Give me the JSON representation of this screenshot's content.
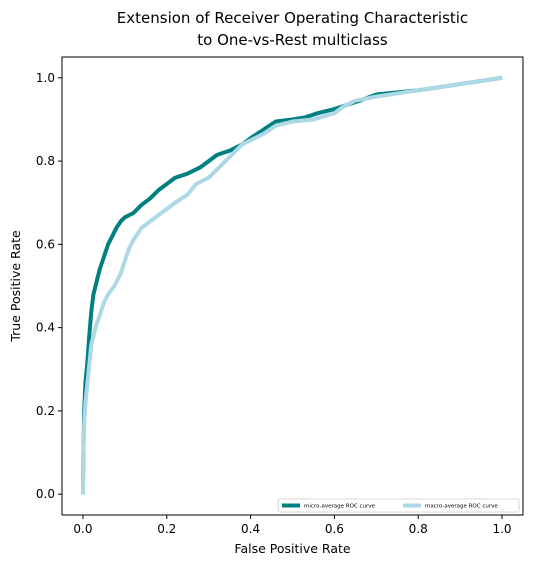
{
  "chart_data": {
    "type": "line",
    "title": [
      "Extension of Receiver Operating Characteristic",
      "to One-vs-Rest multiclass"
    ],
    "xlabel": "False Positive Rate",
    "ylabel": "True Positive Rate",
    "xlim": [
      -0.05,
      1.05
    ],
    "ylim": [
      -0.05,
      1.05
    ],
    "x_ticks": [
      "0.0",
      "0.2",
      "0.4",
      "0.6",
      "0.8",
      "1.0"
    ],
    "y_ticks": [
      "0.0",
      "0.2",
      "0.4",
      "0.6",
      "0.8",
      "1.0"
    ],
    "grid": false,
    "legend_position": "lower right",
    "series": [
      {
        "name": "micro-average ROC curve",
        "color": "#008080",
        "points": [
          [
            0.0,
            0.0
          ],
          [
            0.001,
            0.1
          ],
          [
            0.003,
            0.2
          ],
          [
            0.006,
            0.27
          ],
          [
            0.01,
            0.31
          ],
          [
            0.015,
            0.38
          ],
          [
            0.02,
            0.44
          ],
          [
            0.025,
            0.48
          ],
          [
            0.03,
            0.5
          ],
          [
            0.035,
            0.52
          ],
          [
            0.04,
            0.54
          ],
          [
            0.05,
            0.57
          ],
          [
            0.06,
            0.6
          ],
          [
            0.07,
            0.62
          ],
          [
            0.08,
            0.64
          ],
          [
            0.09,
            0.655
          ],
          [
            0.1,
            0.665
          ],
          [
            0.12,
            0.675
          ],
          [
            0.14,
            0.695
          ],
          [
            0.16,
            0.71
          ],
          [
            0.18,
            0.73
          ],
          [
            0.2,
            0.745
          ],
          [
            0.22,
            0.76
          ],
          [
            0.25,
            0.77
          ],
          [
            0.28,
            0.785
          ],
          [
            0.3,
            0.8
          ],
          [
            0.32,
            0.815
          ],
          [
            0.35,
            0.825
          ],
          [
            0.38,
            0.84
          ],
          [
            0.4,
            0.855
          ],
          [
            0.43,
            0.875
          ],
          [
            0.46,
            0.895
          ],
          [
            0.5,
            0.9
          ],
          [
            0.53,
            0.905
          ],
          [
            0.56,
            0.915
          ],
          [
            0.6,
            0.925
          ],
          [
            0.63,
            0.935
          ],
          [
            0.66,
            0.945
          ],
          [
            0.7,
            0.96
          ],
          [
            0.8,
            0.97
          ],
          [
            0.9,
            0.985
          ],
          [
            1.0,
            1.0
          ]
        ]
      },
      {
        "name": "macro-average ROC curve",
        "color": "#ADD8E6",
        "points": [
          [
            0.0,
            0.0
          ],
          [
            0.001,
            0.1
          ],
          [
            0.003,
            0.17
          ],
          [
            0.006,
            0.22
          ],
          [
            0.01,
            0.26
          ],
          [
            0.015,
            0.31
          ],
          [
            0.02,
            0.36
          ],
          [
            0.03,
            0.4
          ],
          [
            0.04,
            0.43
          ],
          [
            0.05,
            0.46
          ],
          [
            0.06,
            0.48
          ],
          [
            0.075,
            0.5
          ],
          [
            0.09,
            0.53
          ],
          [
            0.1,
            0.56
          ],
          [
            0.11,
            0.59
          ],
          [
            0.12,
            0.61
          ],
          [
            0.14,
            0.64
          ],
          [
            0.16,
            0.655
          ],
          [
            0.18,
            0.67
          ],
          [
            0.2,
            0.685
          ],
          [
            0.22,
            0.7
          ],
          [
            0.25,
            0.72
          ],
          [
            0.27,
            0.745
          ],
          [
            0.3,
            0.76
          ],
          [
            0.32,
            0.78
          ],
          [
            0.35,
            0.81
          ],
          [
            0.38,
            0.84
          ],
          [
            0.4,
            0.85
          ],
          [
            0.43,
            0.865
          ],
          [
            0.46,
            0.885
          ],
          [
            0.5,
            0.895
          ],
          [
            0.55,
            0.9
          ],
          [
            0.6,
            0.915
          ],
          [
            0.62,
            0.93
          ],
          [
            0.65,
            0.945
          ],
          [
            0.7,
            0.955
          ],
          [
            0.8,
            0.97
          ],
          [
            0.9,
            0.985
          ],
          [
            1.0,
            1.0
          ]
        ]
      }
    ]
  }
}
